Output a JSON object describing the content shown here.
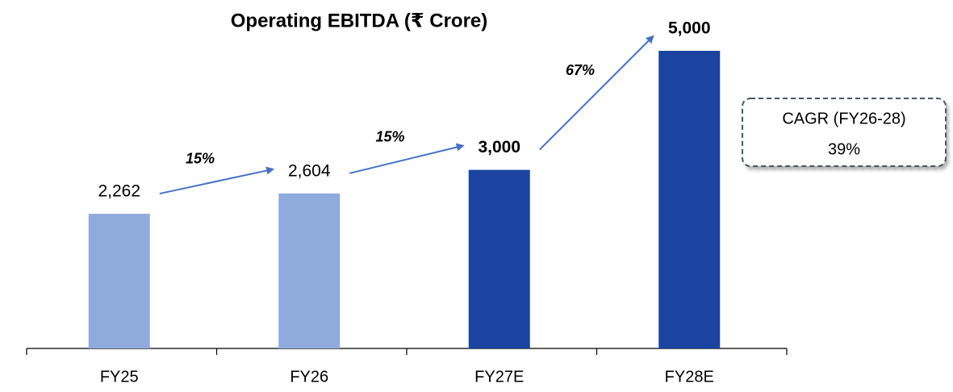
{
  "chart_data": {
    "type": "bar",
    "title": "Operating EBITDA (₹ Crore)",
    "categories": [
      "FY25",
      "FY26",
      "FY27E",
      "FY28E"
    ],
    "values": [
      2262,
      2604,
      3000,
      5000
    ],
    "value_labels": [
      "2,262",
      "2,604",
      "3,000",
      "5,000"
    ],
    "colors": [
      "#8faadc",
      "#8faadc",
      "#1a44a0",
      "#1a44a0"
    ],
    "emphasis": [
      false,
      false,
      true,
      true
    ],
    "growth_labels": [
      "15%",
      "15%",
      "67%"
    ],
    "arrow_color": "#4472c4",
    "cagr_label": "CAGR (FY26-28)",
    "cagr_value": "39%"
  }
}
